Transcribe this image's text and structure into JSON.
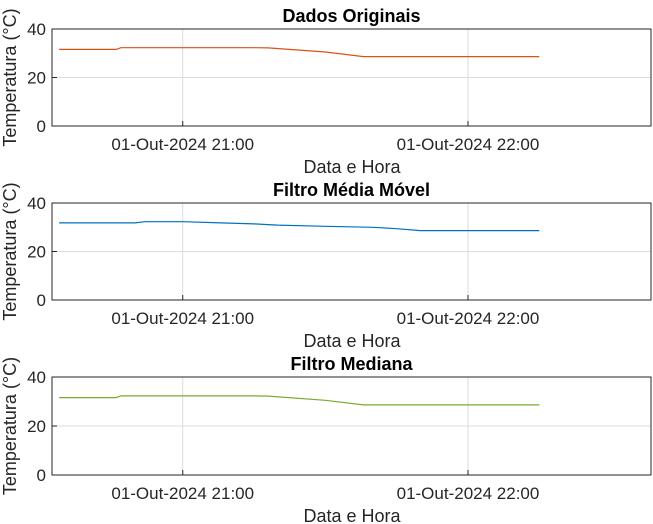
{
  "chart_data": [
    {
      "type": "line",
      "title": "Dados Originais",
      "xlabel": "Data e Hora",
      "ylabel": "Temperatura (°C)",
      "ylim": [
        0,
        40
      ],
      "yticks": [
        "0",
        "20",
        "40"
      ],
      "xticks": [
        "01-Out-2024 21:00",
        "01-Out-2024 22:00"
      ],
      "grid": true,
      "color": "#d95319",
      "series": [
        {
          "x": [
            "20:34",
            "20:46",
            "20:47",
            "21:00",
            "21:15",
            "21:18",
            "21:30",
            "21:38",
            "21:45",
            "22:00",
            "22:15"
          ],
          "values": [
            31.6,
            31.6,
            32.3,
            32.3,
            32.3,
            32.2,
            30.5,
            28.6,
            28.6,
            28.6,
            28.6
          ]
        }
      ]
    },
    {
      "type": "line",
      "title": "Filtro Média Móvel",
      "xlabel": "Data e Hora",
      "ylabel": "Temperatura (°C)",
      "ylim": [
        0,
        40
      ],
      "yticks": [
        "0",
        "20",
        "40"
      ],
      "xticks": [
        "01-Out-2024 21:00",
        "01-Out-2024 22:00"
      ],
      "grid": true,
      "color": "#0072bd",
      "series": [
        {
          "x": [
            "20:34",
            "20:50",
            "20:52",
            "21:00",
            "21:08",
            "21:15",
            "21:20",
            "21:30",
            "21:40",
            "21:45",
            "21:50",
            "22:00",
            "22:15"
          ],
          "values": [
            31.8,
            31.8,
            32.3,
            32.3,
            31.8,
            31.4,
            30.9,
            30.4,
            30.0,
            29.4,
            28.6,
            28.6,
            28.6
          ]
        }
      ]
    },
    {
      "type": "line",
      "title": "Filtro Mediana",
      "xlabel": "Data e Hora",
      "ylabel": "Temperatura (°C)",
      "ylim": [
        0,
        40
      ],
      "yticks": [
        "0",
        "20",
        "40"
      ],
      "xticks": [
        "01-Out-2024 21:00",
        "01-Out-2024 22:00"
      ],
      "grid": true,
      "color": "#77ac30",
      "series": [
        {
          "x": [
            "20:34",
            "20:46",
            "20:47",
            "21:00",
            "21:15",
            "21:18",
            "21:30",
            "21:38",
            "21:45",
            "22:00",
            "22:15"
          ],
          "values": [
            31.6,
            31.6,
            32.3,
            32.3,
            32.3,
            32.2,
            30.5,
            28.6,
            28.6,
            28.6,
            28.6
          ]
        }
      ]
    }
  ]
}
